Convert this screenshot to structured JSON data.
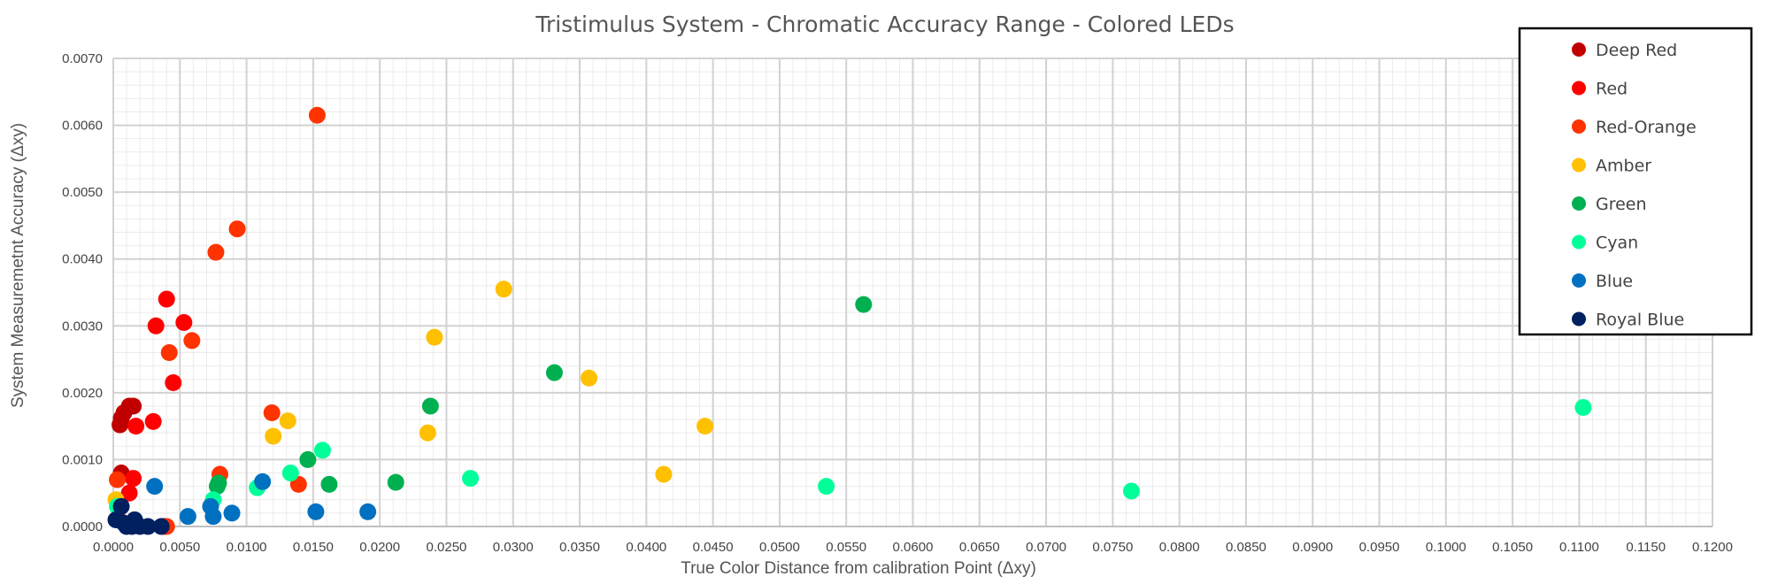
{
  "chart_data": {
    "type": "scatter",
    "title": "Tristimulus System - Chromatic Accuracy Range - Colored LEDs",
    "xlabel": "True Color Distance from calibration Point (Δxy)",
    "ylabel": "System Measuremetnt Accuracy (Δxy)",
    "xlim": [
      0,
      0.12
    ],
    "ylim": [
      0,
      0.007
    ],
    "x_ticks": [
      "0.0000",
      "0.0050",
      "0.0100",
      "0.0150",
      "0.0200",
      "0.0250",
      "0.0300",
      "0.0350",
      "0.0400",
      "0.0450",
      "0.0500",
      "0.0550",
      "0.0600",
      "0.0650",
      "0.0700",
      "0.0750",
      "0.0800",
      "0.0850",
      "0.0900",
      "0.0950",
      "0.1000",
      "0.1050",
      "0.1100",
      "0.1150",
      "0.1200"
    ],
    "y_ticks": [
      "0.0000",
      "0.0010",
      "0.0020",
      "0.0030",
      "0.0040",
      "0.0050",
      "0.0060",
      "0.0070"
    ],
    "grid": true,
    "legend_position": "top-right",
    "series": [
      {
        "name": "Deep Red",
        "color": "#c00000",
        "points": [
          [
            0.0005,
            0.00152
          ],
          [
            0.0006,
            0.00162
          ],
          [
            0.0008,
            0.0017
          ],
          [
            0.0012,
            0.0018
          ],
          [
            0.0015,
            0.0018
          ],
          [
            0.0006,
            0.0008
          ]
        ]
      },
      {
        "name": "Red",
        "color": "#ff0000",
        "points": [
          [
            0.0032,
            0.003
          ],
          [
            0.004,
            0.0034
          ],
          [
            0.0053,
            0.00305
          ],
          [
            0.0045,
            0.00215
          ],
          [
            0.003,
            0.00157
          ],
          [
            0.0017,
            0.0015
          ],
          [
            0.0015,
            0.00072
          ],
          [
            0.0012,
            0.0005
          ],
          [
            0.0004,
            0.0001
          ],
          [
            0.0038,
            0.0
          ]
        ]
      },
      {
        "name": "Red-Orange",
        "color": "#ff3300",
        "points": [
          [
            0.0153,
            0.00615
          ],
          [
            0.0093,
            0.00445
          ],
          [
            0.0077,
            0.0041
          ],
          [
            0.0059,
            0.00278
          ],
          [
            0.0042,
            0.0026
          ],
          [
            0.0119,
            0.0017
          ],
          [
            0.008,
            0.00078
          ],
          [
            0.0139,
            0.00063
          ],
          [
            0.0003,
            0.0007
          ],
          [
            0.004,
            0.0
          ]
        ]
      },
      {
        "name": "Amber",
        "color": "#ffc000",
        "points": [
          [
            0.0293,
            0.00355
          ],
          [
            0.0241,
            0.00283
          ],
          [
            0.0357,
            0.00222
          ],
          [
            0.0131,
            0.00158
          ],
          [
            0.012,
            0.00135
          ],
          [
            0.0236,
            0.0014
          ],
          [
            0.0444,
            0.0015
          ],
          [
            0.0413,
            0.00078
          ],
          [
            0.0002,
            0.0004
          ]
        ]
      },
      {
        "name": "Green",
        "color": "#00b050",
        "points": [
          [
            0.0563,
            0.00332
          ],
          [
            0.0331,
            0.0023
          ],
          [
            0.0238,
            0.0018
          ],
          [
            0.0146,
            0.001
          ],
          [
            0.0079,
            0.00065
          ],
          [
            0.0078,
            0.0006
          ],
          [
            0.0162,
            0.00063
          ],
          [
            0.0212,
            0.00066
          ]
        ]
      },
      {
        "name": "Cyan",
        "color": "#00ff99",
        "points": [
          [
            0.1103,
            0.00178
          ],
          [
            0.0157,
            0.00114
          ],
          [
            0.0133,
            0.0008
          ],
          [
            0.0108,
            0.00058
          ],
          [
            0.0268,
            0.00072
          ],
          [
            0.0535,
            0.0006
          ],
          [
            0.0764,
            0.00053
          ],
          [
            0.0075,
            0.0004
          ],
          [
            0.0003,
            0.0003
          ]
        ]
      },
      {
        "name": "Blue",
        "color": "#0070c0",
        "points": [
          [
            0.0031,
            0.0006
          ],
          [
            0.0112,
            0.00067
          ],
          [
            0.0073,
            0.0003
          ],
          [
            0.0056,
            0.00015
          ],
          [
            0.0075,
            0.00015
          ],
          [
            0.0089,
            0.0002
          ],
          [
            0.0152,
            0.00022
          ],
          [
            0.0191,
            0.00022
          ]
        ]
      },
      {
        "name": "Royal Blue",
        "color": "#002060",
        "points": [
          [
            0.0006,
            0.0003
          ],
          [
            0.0002,
            0.0001
          ],
          [
            0.0016,
            0.0001
          ],
          [
            0.001,
            0.0
          ],
          [
            0.0014,
            0.0
          ],
          [
            0.002,
            0.0
          ],
          [
            0.0026,
            0.0
          ],
          [
            0.0036,
            0.0
          ],
          [
            0.0008,
            5e-05
          ]
        ]
      }
    ]
  }
}
